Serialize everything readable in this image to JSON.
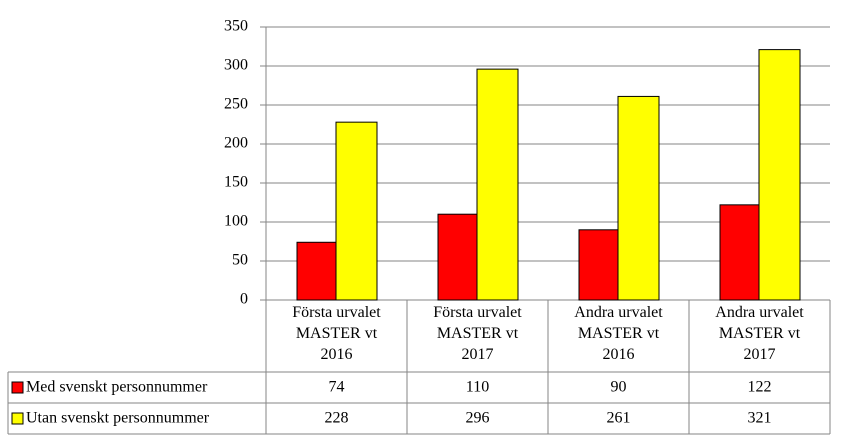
{
  "chart_data": {
    "type": "bar",
    "categories": [
      "Första urvalet\nMASTER vt\n2016",
      "Första urvalet\nMASTER vt\n2017",
      "Andra urvalet\nMASTER vt\n2016",
      "Andra urvalet\nMASTER vt\n2017"
    ],
    "series": [
      {
        "name": "Med svenskt personnummer",
        "color": "#ff0000",
        "values": [
          74,
          110,
          90,
          122
        ]
      },
      {
        "name": "Utan svenskt personnummer",
        "color": "#ffff00",
        "values": [
          228,
          296,
          261,
          321
        ]
      }
    ],
    "ylim": [
      0,
      350
    ],
    "yticks": [
      0,
      50,
      100,
      150,
      200,
      250,
      300,
      350
    ],
    "grid": true
  }
}
